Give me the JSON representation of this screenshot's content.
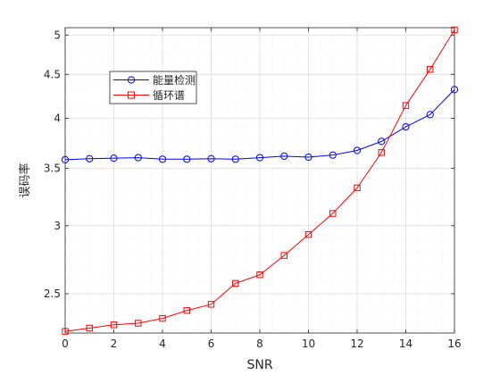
{
  "chart_data": {
    "type": "line",
    "title": "",
    "xlabel": "SNR",
    "ylabel": "误码率",
    "xlim": [
      0,
      16
    ],
    "ylim": [
      2.25,
      5.1
    ],
    "yscale": "log",
    "grid": true,
    "minor_grid": true,
    "x_ticks": [
      "0",
      "2",
      "4",
      "6",
      "8",
      "10",
      "12",
      "14",
      "16"
    ],
    "y_ticks": [
      {
        "value": 2.5,
        "label": "2.5"
      },
      {
        "value": 3,
        "label": "3"
      },
      {
        "value": 3.5,
        "label": "3.5"
      },
      {
        "value": 4,
        "label": "4"
      },
      {
        "value": 4.5,
        "label": "4.5"
      },
      {
        "value": 5,
        "label": "5"
      }
    ],
    "legend_position": "upper-left",
    "x": [
      0,
      1,
      2,
      3,
      4,
      5,
      6,
      7,
      8,
      9,
      10,
      11,
      12,
      13,
      14,
      15,
      16
    ],
    "series": [
      {
        "name": "能量检测",
        "color": "#0000ff",
        "marker": "circle",
        "values": [
          3.58,
          3.59,
          3.595,
          3.6,
          3.585,
          3.585,
          3.59,
          3.585,
          3.6,
          3.615,
          3.605,
          3.625,
          3.67,
          3.76,
          3.91,
          4.04,
          4.32
        ]
      },
      {
        "name": "循环谱",
        "color": "#ff0000",
        "marker": "square",
        "values": [
          2.26,
          2.28,
          2.3,
          2.31,
          2.34,
          2.39,
          2.43,
          2.57,
          2.63,
          2.77,
          2.93,
          3.1,
          3.32,
          3.65,
          4.14,
          4.56,
          5.07
        ]
      }
    ]
  }
}
